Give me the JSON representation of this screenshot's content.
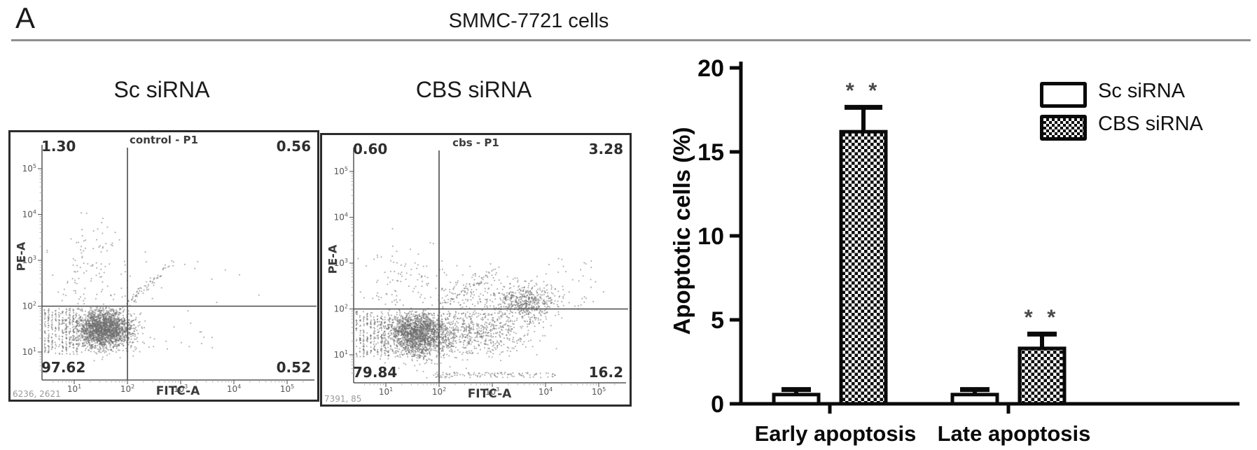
{
  "panel_label": "A",
  "header": {
    "title": "SMMC-7721 cells"
  },
  "chart_data": [
    {
      "type": "scatter",
      "subtype": "flow-cytometry-dot-plot",
      "title": "Sc siRNA",
      "gate_label": "control - P1",
      "xlabel": "FITC-A",
      "ylabel": "PE-A",
      "x_scale": "log",
      "y_scale": "log",
      "tick_exponents": [
        1,
        2,
        3,
        4,
        5
      ],
      "quadrant_gate_x_exp": 2,
      "quadrant_gate_y_exp": 2,
      "quadrant_percentages": {
        "upper_left": "1.30",
        "upper_right": "0.56",
        "lower_left": "97.62",
        "lower_right": "0.52"
      },
      "corner_text": "6236, 2621",
      "clusters": [
        {
          "type": "gauss",
          "n": 2200,
          "cx": 1.55,
          "cy": 1.5,
          "sx": 0.26,
          "sy": 0.21,
          "ymax": 1.97
        },
        {
          "type": "columns",
          "n": 300,
          "x0": 0.45,
          "x1": 1.05,
          "y0": 0.95,
          "y1": 1.95,
          "cols": 10
        },
        {
          "type": "gauss",
          "n": 130,
          "cx": 1.35,
          "cy": 2.7,
          "sx": 0.42,
          "sy": 0.55,
          "xmax": 2.05
        },
        {
          "type": "line",
          "n": 65,
          "x0": 1.95,
          "y0": 2.0,
          "x1": 2.85,
          "y1": 2.95,
          "jitter": 0.07
        },
        {
          "type": "uniform",
          "n": 20,
          "x0": 2.1,
          "x1": 3.6,
          "y0": 1.05,
          "y1": 1.95
        },
        {
          "type": "uniform",
          "n": 12,
          "x0": 2.1,
          "x1": 4.5,
          "y0": 2.05,
          "y1": 3.2
        }
      ]
    },
    {
      "type": "scatter",
      "subtype": "flow-cytometry-dot-plot",
      "title": "CBS siRNA",
      "gate_label": "cbs - P1",
      "xlabel": "FITC-A",
      "ylabel": "PE-A",
      "x_scale": "log",
      "y_scale": "log",
      "tick_exponents": [
        1,
        2,
        3,
        4,
        5
      ],
      "quadrant_gate_x_exp": 2,
      "quadrant_gate_y_exp": 2,
      "quadrant_percentages": {
        "upper_left": "0.60",
        "upper_right": "3.28",
        "lower_left": "79.84",
        "lower_right": "16.2"
      },
      "corner_text": "7391, 85",
      "clusters": [
        {
          "type": "gauss",
          "n": 2000,
          "cx": 1.6,
          "cy": 1.45,
          "sx": 0.3,
          "sy": 0.24,
          "ymax": 1.97
        },
        {
          "type": "columns",
          "n": 280,
          "x0": 0.45,
          "x1": 1.05,
          "y0": 0.95,
          "y1": 1.95,
          "cols": 10
        },
        {
          "type": "gauss",
          "n": 600,
          "cx": 2.75,
          "cy": 1.5,
          "sx": 0.5,
          "sy": 0.27,
          "ymax": 1.95,
          "xmin": 1.9
        },
        {
          "type": "gauss",
          "n": 520,
          "cx": 3.6,
          "cy": 2.15,
          "sx": 0.3,
          "sy": 0.2
        },
        {
          "type": "gauss",
          "n": 170,
          "cx": 2.6,
          "cy": 2.35,
          "sx": 0.5,
          "sy": 0.3
        },
        {
          "type": "gauss",
          "n": 100,
          "cx": 1.3,
          "cy": 2.55,
          "sx": 0.38,
          "sy": 0.5,
          "xmax": 1.9
        },
        {
          "type": "uniform",
          "n": 110,
          "x0": 1.9,
          "x1": 4.2,
          "y0": 0.5,
          "y1": 0.62
        },
        {
          "type": "line",
          "n": 60,
          "x0": 2.0,
          "y0": 2.05,
          "x1": 3.1,
          "y1": 2.9,
          "jitter": 0.07
        },
        {
          "type": "uniform",
          "n": 40,
          "x0": 4.0,
          "x1": 5.1,
          "y0": 2.0,
          "y1": 3.1
        }
      ]
    },
    {
      "type": "bar",
      "categories": [
        "Early apoptosis",
        "Late apoptosis"
      ],
      "series": [
        {
          "name": "Sc siRNA",
          "values": [
            0.55,
            0.55
          ],
          "errors": [
            0.3,
            0.3
          ],
          "fill": "white"
        },
        {
          "name": "CBS siRNA",
          "values": [
            16.2,
            3.3
          ],
          "errors": [
            1.45,
            0.85
          ],
          "fill": "checker"
        }
      ],
      "ylabel": "Apoptotic cells (%)",
      "ylim": [
        0,
        20
      ],
      "yticks": [
        0,
        5,
        10,
        15,
        20
      ],
      "grid": false,
      "significance": [
        {
          "category_index": 0,
          "series_index": 1,
          "label": "* *"
        },
        {
          "category_index": 1,
          "series_index": 1,
          "label": "* *"
        }
      ],
      "legend": {
        "position": "top-right",
        "entries": [
          "Sc siRNA",
          "CBS siRNA"
        ]
      }
    }
  ]
}
